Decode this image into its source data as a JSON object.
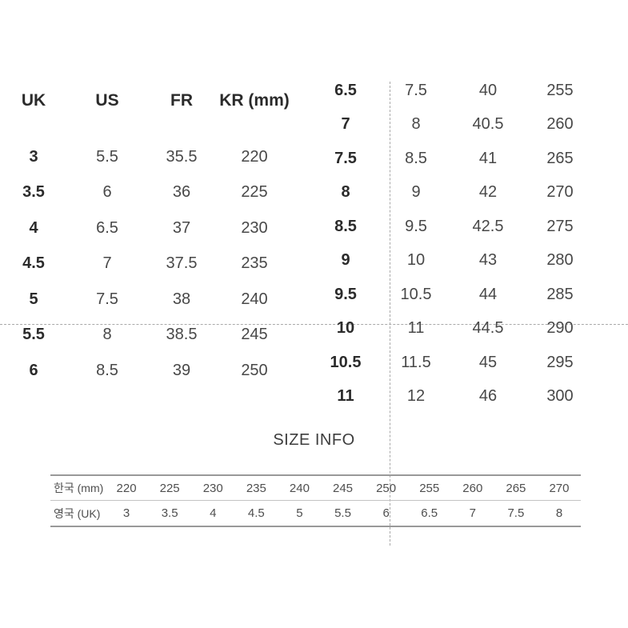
{
  "colors": {
    "background": "#ffffff",
    "text_primary": "#2b2b2b",
    "text_secondary": "#484848",
    "table_text": "#4f4f4f",
    "guide_line": "#a9a9a9",
    "table_border_strong": "#999999",
    "table_border_light": "#c3c3c3"
  },
  "size_chart": {
    "headers": [
      "UK",
      "US",
      "FR",
      "KR (mm)"
    ],
    "left_rows": [
      [
        "3",
        "5.5",
        "35.5",
        "220"
      ],
      [
        "3.5",
        "6",
        "36",
        "225"
      ],
      [
        "4",
        "6.5",
        "37",
        "230"
      ],
      [
        "4.5",
        "7",
        "37.5",
        "235"
      ],
      [
        "5",
        "7.5",
        "38",
        "240"
      ],
      [
        "5.5",
        "8",
        "38.5",
        "245"
      ],
      [
        "6",
        "8.5",
        "39",
        "250"
      ]
    ],
    "right_rows": [
      [
        "6.5",
        "7.5",
        "40",
        "255"
      ],
      [
        "7",
        "8",
        "40.5",
        "260"
      ],
      [
        "7.5",
        "8.5",
        "41",
        "265"
      ],
      [
        "8",
        "9",
        "42",
        "270"
      ],
      [
        "8.5",
        "9.5",
        "42.5",
        "275"
      ],
      [
        "9",
        "10",
        "43",
        "280"
      ],
      [
        "9.5",
        "10.5",
        "44",
        "285"
      ],
      [
        "10",
        "11",
        "44.5",
        "290"
      ],
      [
        "10.5",
        "11.5",
        "45",
        "295"
      ],
      [
        "11",
        "12",
        "46",
        "300"
      ]
    ]
  },
  "size_info": {
    "title": "SIZE INFO",
    "table": {
      "rows": [
        {
          "label": "한국 (mm)",
          "values": [
            "220",
            "225",
            "230",
            "235",
            "240",
            "245",
            "250",
            "255",
            "260",
            "265",
            "270"
          ]
        },
        {
          "label": "영국 (UK)",
          "values": [
            "3",
            "3.5",
            "4",
            "4.5",
            "5",
            "5.5",
            "6",
            "6.5",
            "7",
            "7.5",
            "8"
          ]
        }
      ]
    }
  }
}
